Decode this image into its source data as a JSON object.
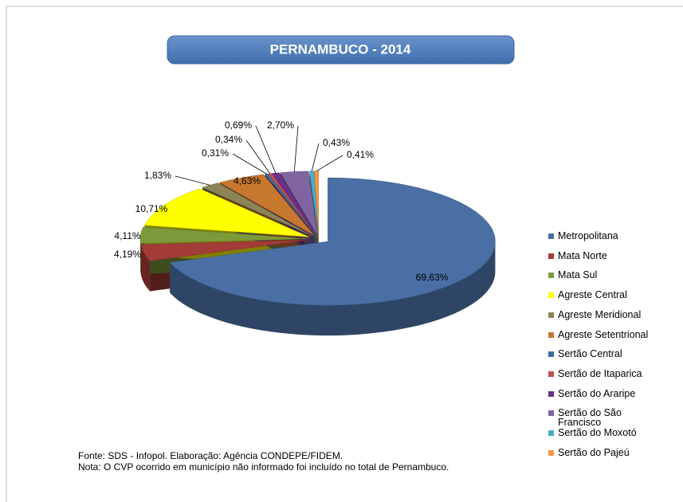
{
  "chart_data": {
    "type": "pie3d",
    "title": "PERNAMBUCO - 2014",
    "categories": [
      "Metropolitana",
      "Mata Norte",
      "Mata Sul",
      "Agreste Central",
      "Agreste Meridional",
      "Agreste Setentrional",
      "Sertão Central",
      "Sertão de Itaparica",
      "Sertão do Araripe",
      "Sertão do São Francisco",
      "Sertão do Moxotó",
      "Sertão do Pajeú"
    ],
    "values": [
      69.63,
      4.19,
      4.11,
      10.71,
      1.83,
      4.63,
      0.31,
      0.34,
      0.69,
      2.7,
      0.43,
      0.41
    ],
    "value_labels": [
      "69,63%",
      "4,19%",
      "4,11%",
      "10,71%",
      "1,83%",
      "4,63%",
      "0,31%",
      "0,34%",
      "0,69%",
      "2,70%",
      "0,43%",
      "0,41%"
    ],
    "colors": [
      "#4a6fa5",
      "#a33b38",
      "#7d9a3a",
      "#ffff00",
      "#8c8455",
      "#c8772f",
      "#3e6da5",
      "#c0504d",
      "#6b2f8c",
      "#8064a2",
      "#4bacc6",
      "#f79646"
    ],
    "legend": "right",
    "notes": [
      "Fonte: SDS - Infopol. Elaboração: Agência CONDEPE/FIDEM.",
      "Nota: O CVP ocorrido em município não informado foi incluído no total de Pernambuco."
    ]
  }
}
